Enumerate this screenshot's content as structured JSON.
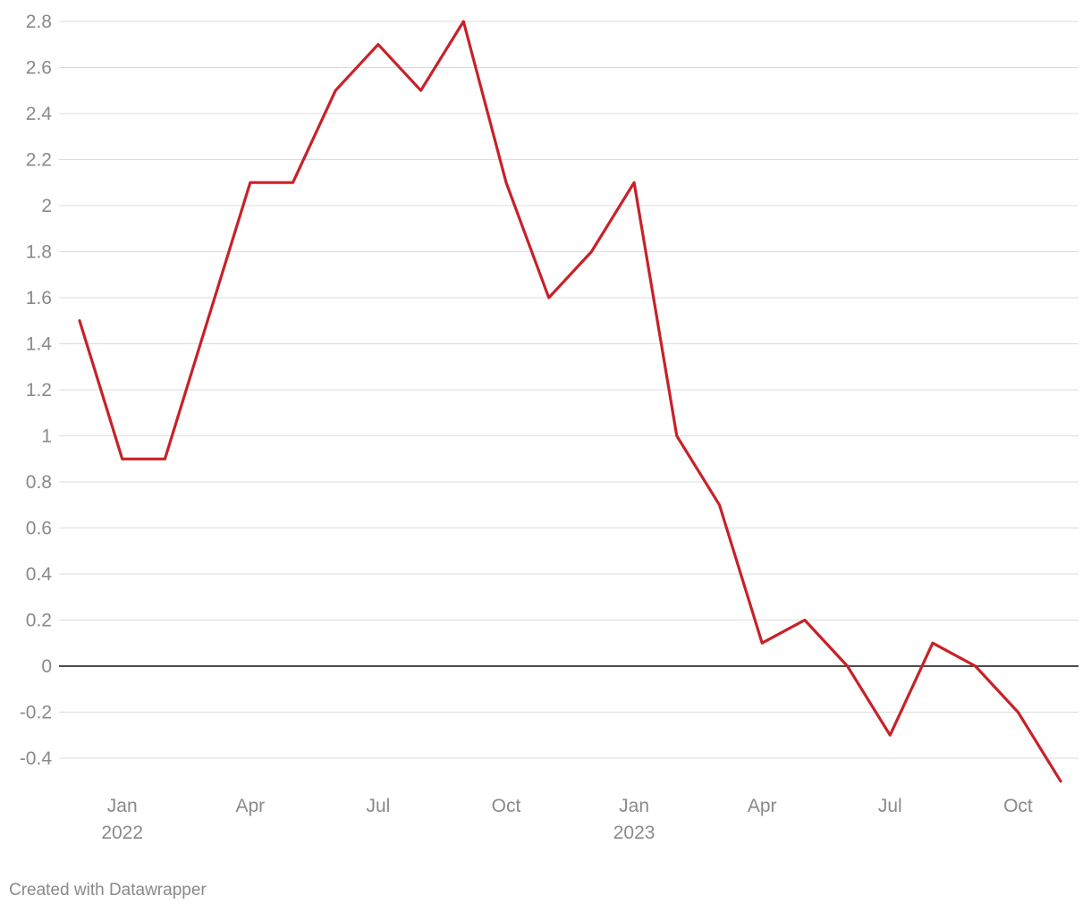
{
  "chart_data": {
    "type": "line",
    "title": "",
    "xlabel": "",
    "ylabel": "",
    "ylim": [
      -0.5,
      2.8
    ],
    "yticks": [
      "2.8",
      "2.6",
      "2.4",
      "2.2",
      "2",
      "1.8",
      "1.6",
      "1.4",
      "1.2",
      "1",
      "0.8",
      "0.6",
      "0.4",
      "0.2",
      "0",
      "-0.2",
      "-0.4"
    ],
    "ytick_values": [
      2.8,
      2.6,
      2.4,
      2.2,
      2.0,
      1.8,
      1.6,
      1.4,
      1.2,
      1.0,
      0.8,
      0.6,
      0.4,
      0.2,
      0,
      -0.2,
      -0.4
    ],
    "xticks": [
      {
        "date": "2022-01",
        "label": "Jan",
        "sublabel": "2022"
      },
      {
        "date": "2022-04",
        "label": "Apr",
        "sublabel": ""
      },
      {
        "date": "2022-07",
        "label": "Jul",
        "sublabel": ""
      },
      {
        "date": "2022-10",
        "label": "Oct",
        "sublabel": ""
      },
      {
        "date": "2023-01",
        "label": "Jan",
        "sublabel": "2023"
      },
      {
        "date": "2023-04",
        "label": "Apr",
        "sublabel": ""
      },
      {
        "date": "2023-07",
        "label": "Jul",
        "sublabel": ""
      },
      {
        "date": "2023-10",
        "label": "Oct",
        "sublabel": ""
      }
    ],
    "grid": true,
    "line_color": "#c82128",
    "series": [
      {
        "x": [
          "2021-12",
          "2022-01",
          "2022-02",
          "2022-03",
          "2022-04",
          "2022-05",
          "2022-06",
          "2022-07",
          "2022-08",
          "2022-09",
          "2022-10",
          "2022-11",
          "2022-12",
          "2023-01",
          "2023-02",
          "2023-03",
          "2023-04",
          "2023-05",
          "2023-06",
          "2023-07",
          "2023-08",
          "2023-09",
          "2023-10",
          "2023-11"
        ],
        "values": [
          1.5,
          0.9,
          0.9,
          1.5,
          2.1,
          2.1,
          2.5,
          2.7,
          2.5,
          2.8,
          2.1,
          1.6,
          1.8,
          2.1,
          1.0,
          0.7,
          0.1,
          0.2,
          0.0,
          -0.3,
          0.1,
          0.0,
          -0.2,
          -0.5
        ]
      }
    ]
  },
  "footer": {
    "credit": "Created with Datawrapper"
  }
}
